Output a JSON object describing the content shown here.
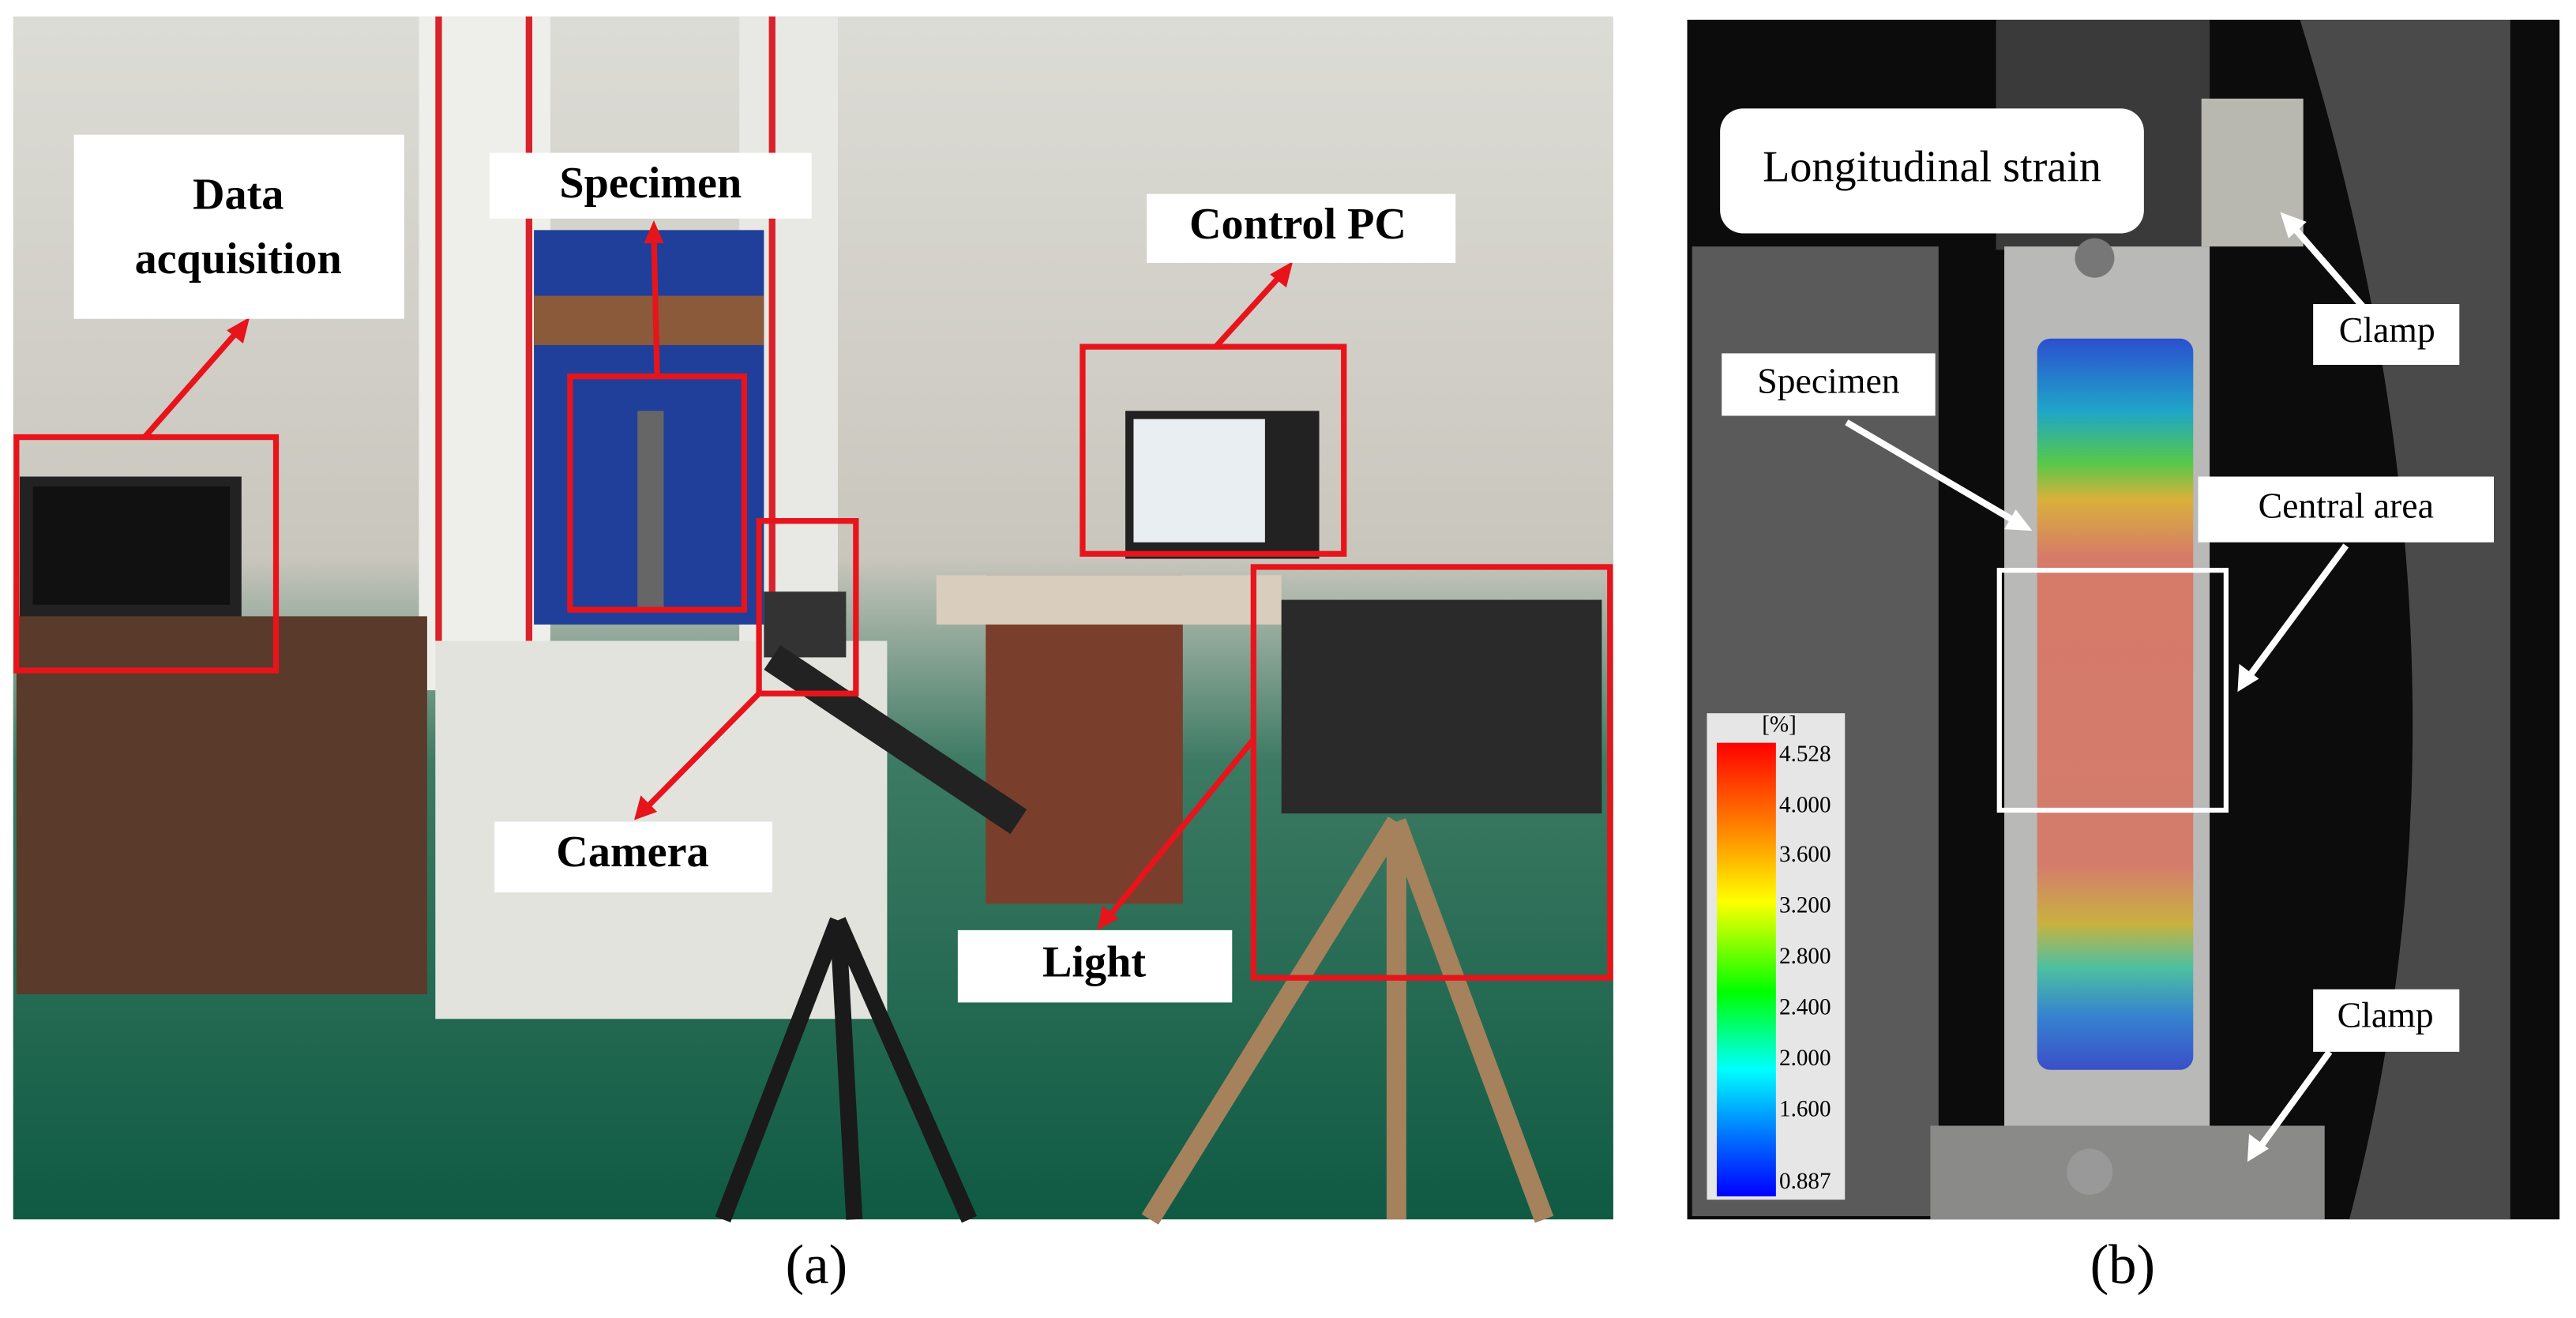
{
  "panel_a": {
    "labels": {
      "data_acquisition": [
        "Data",
        "acquisition"
      ],
      "specimen": "Specimen",
      "control_pc": "Control PC",
      "camera": "Camera",
      "light": "Light"
    },
    "caption": "(a)"
  },
  "panel_b": {
    "labels": {
      "longitudinal_strain": "Longitudinal strain",
      "clamp_top": "Clamp",
      "specimen": "Specimen",
      "central_area": "Central area",
      "clamp_bottom": "Clamp"
    },
    "colorbar": {
      "unit": "[%]",
      "ticks": [
        "4.528",
        "4.000",
        "3.600",
        "3.200",
        "2.800",
        "2.400",
        "2.000",
        "1.600",
        "0.887"
      ]
    },
    "caption": "(b)"
  }
}
